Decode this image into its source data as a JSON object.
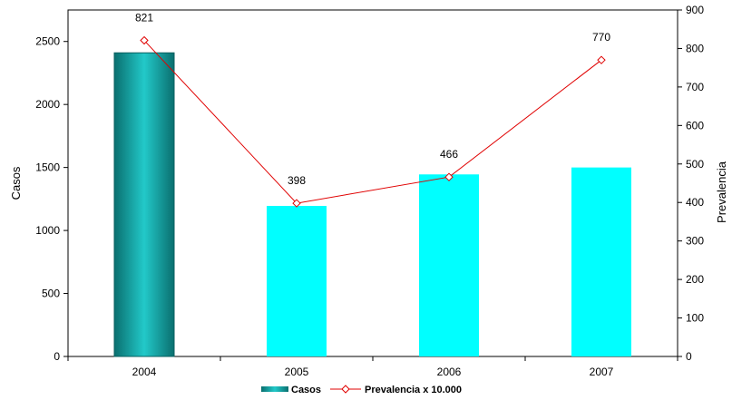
{
  "chart_data": {
    "type": "bar",
    "categories": [
      "2004",
      "2005",
      "2006",
      "2007"
    ],
    "series": [
      {
        "name": "Casos",
        "type": "bar",
        "axis": "left",
        "values": [
          2410,
          1195,
          1445,
          1500
        ],
        "colors": [
          "#0f8f8f",
          "#00ffff",
          "#00ffff",
          "#00ffff"
        ]
      },
      {
        "name": "Prevalencia x 10.000",
        "type": "line",
        "axis": "right",
        "values": [
          821,
          398,
          466,
          770
        ],
        "color": "#e00000",
        "data_labels": [
          "821",
          "398",
          "466",
          "770"
        ]
      }
    ],
    "ylabel": "Casos",
    "y2label": "Prevalencia",
    "ylim": [
      0,
      2750
    ],
    "y2lim": [
      0,
      900
    ],
    "yticks": [
      "0",
      "500",
      "1000",
      "1500",
      "2000",
      "2500"
    ],
    "y2ticks": [
      "0",
      "100",
      "200",
      "300",
      "400",
      "500",
      "600",
      "700",
      "800",
      "900"
    ],
    "grid": false,
    "legend_position": "bottom"
  }
}
